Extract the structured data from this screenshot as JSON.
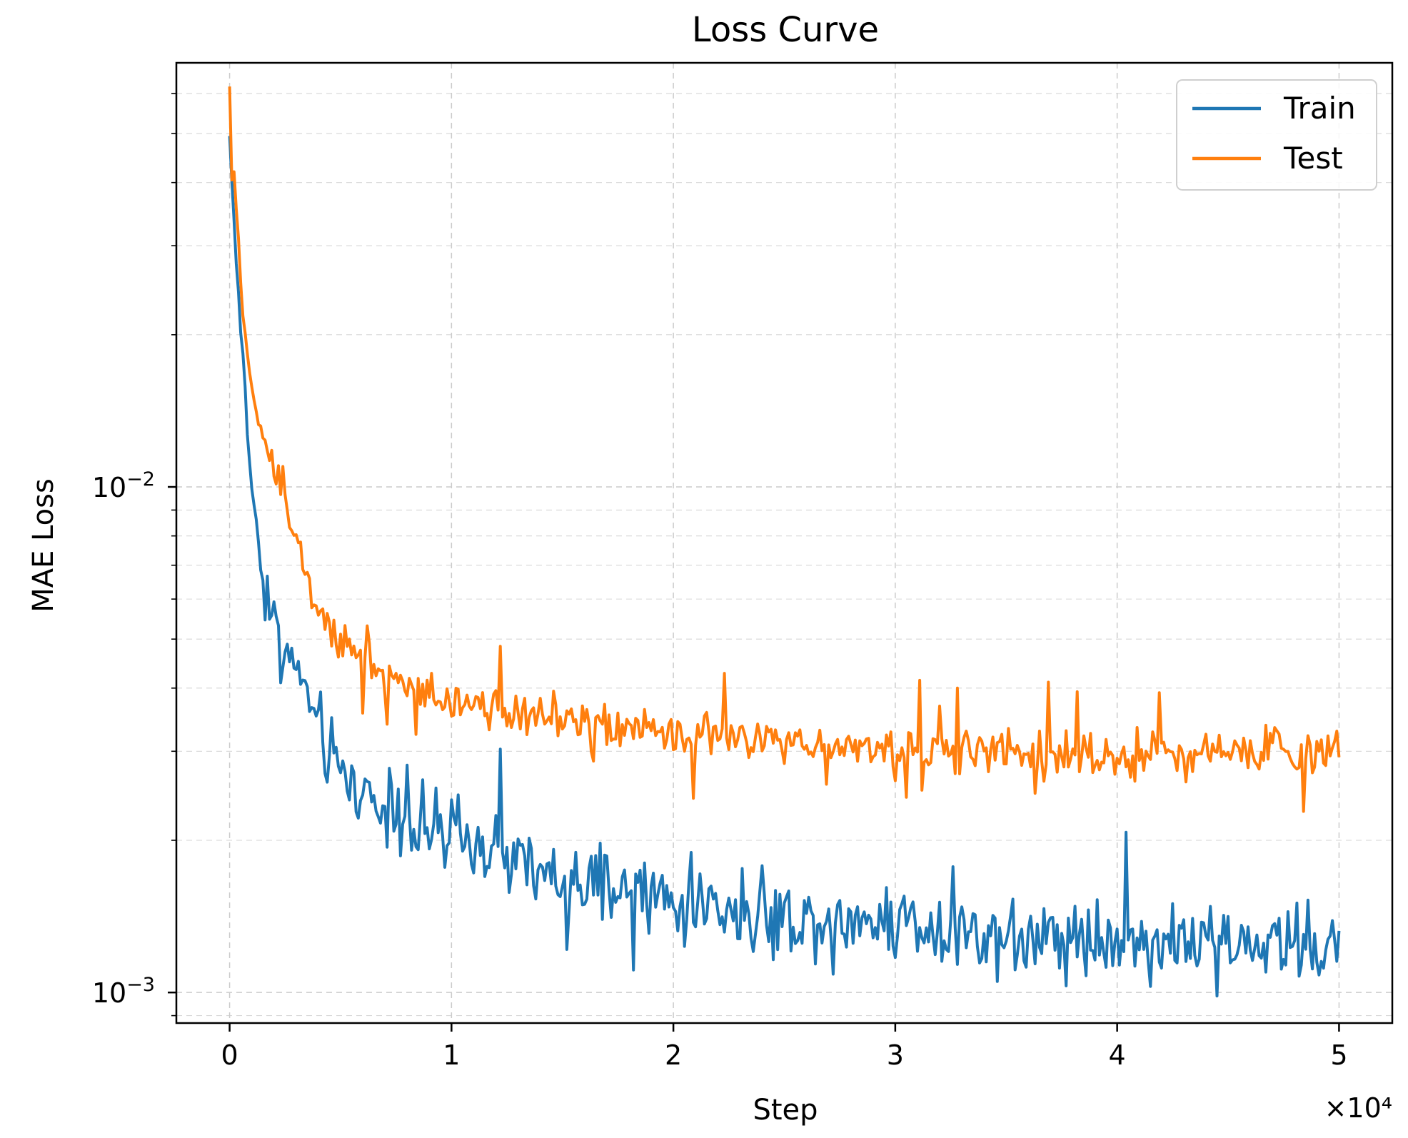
{
  "chart_data": {
    "type": "line",
    "title": "Loss Curve",
    "xlabel": "Step",
    "ylabel": "MAE Loss",
    "x_multiplier_label": "×10⁴",
    "x_scale_factor": 10000,
    "yscale": "log",
    "xlim": [
      -2400,
      52400
    ],
    "ylim": [
      0.00087,
      0.069
    ],
    "x_ticks": [
      {
        "value": 0,
        "label": "0"
      },
      {
        "value": 10000,
        "label": "1"
      },
      {
        "value": 20000,
        "label": "2"
      },
      {
        "value": 30000,
        "label": "3"
      },
      {
        "value": 40000,
        "label": "4"
      },
      {
        "value": 50000,
        "label": "5"
      }
    ],
    "y_major_ticks": [
      {
        "value": 0.001,
        "base": "10",
        "exp": "−3"
      },
      {
        "value": 0.01,
        "base": "10",
        "exp": "−2"
      }
    ],
    "grid": true,
    "legend_position": "upper-right",
    "colors": {
      "Train": "#1f77b4",
      "Test": "#ff7f0e",
      "grid": "#cccccc"
    },
    "series": [
      {
        "name": "Train",
        "color": "#1f77b4",
        "points": [
          [
            0,
            0.049
          ],
          [
            300,
            0.028
          ],
          [
            600,
            0.018
          ],
          [
            900,
            0.011
          ],
          [
            1200,
            0.0085
          ],
          [
            1500,
            0.0066
          ],
          [
            2000,
            0.0055
          ],
          [
            2500,
            0.0048
          ],
          [
            3000,
            0.0043
          ],
          [
            3500,
            0.0039
          ],
          [
            4000,
            0.0033
          ],
          [
            5000,
            0.0027
          ],
          [
            6000,
            0.0025
          ],
          [
            7000,
            0.0023
          ],
          [
            8000,
            0.0022
          ],
          [
            9000,
            0.0021
          ],
          [
            10000,
            0.002
          ],
          [
            12000,
            0.0019
          ],
          [
            14000,
            0.0017
          ],
          [
            16000,
            0.0016
          ],
          [
            18000,
            0.0016
          ],
          [
            20000,
            0.0015
          ],
          [
            22000,
            0.0015
          ],
          [
            24000,
            0.0014
          ],
          [
            26000,
            0.0014
          ],
          [
            28000,
            0.0014
          ],
          [
            30000,
            0.0014
          ],
          [
            32000,
            0.00135
          ],
          [
            34000,
            0.0013
          ],
          [
            36000,
            0.0013
          ],
          [
            38000,
            0.0013
          ],
          [
            40000,
            0.00128
          ],
          [
            42000,
            0.00127
          ],
          [
            44000,
            0.00126
          ],
          [
            46000,
            0.00125
          ],
          [
            48000,
            0.00124
          ],
          [
            50000,
            0.00122
          ]
        ],
        "noise": 0.13
      },
      {
        "name": "Test",
        "color": "#ff7f0e",
        "points": [
          [
            0,
            0.062
          ],
          [
            300,
            0.035
          ],
          [
            600,
            0.022
          ],
          [
            900,
            0.017
          ],
          [
            1200,
            0.014
          ],
          [
            1500,
            0.0125
          ],
          [
            2000,
            0.011
          ],
          [
            2500,
            0.0095
          ],
          [
            3000,
            0.0082
          ],
          [
            3500,
            0.0068
          ],
          [
            4000,
            0.0058
          ],
          [
            5000,
            0.0051
          ],
          [
            6000,
            0.0047
          ],
          [
            7000,
            0.0043
          ],
          [
            8000,
            0.0041
          ],
          [
            9000,
            0.0039
          ],
          [
            10000,
            0.0038
          ],
          [
            12000,
            0.0037
          ],
          [
            14000,
            0.0035
          ],
          [
            16000,
            0.0034
          ],
          [
            18000,
            0.0033
          ],
          [
            20000,
            0.0032
          ],
          [
            22000,
            0.0032
          ],
          [
            24000,
            0.0031
          ],
          [
            26000,
            0.0031
          ],
          [
            28000,
            0.0031
          ],
          [
            30000,
            0.003
          ],
          [
            32000,
            0.003
          ],
          [
            34000,
            0.003
          ],
          [
            36000,
            0.003
          ],
          [
            38000,
            0.003
          ],
          [
            40000,
            0.0029
          ],
          [
            42000,
            0.003
          ],
          [
            44000,
            0.003
          ],
          [
            46000,
            0.003
          ],
          [
            48000,
            0.003
          ],
          [
            50000,
            0.003
          ]
        ],
        "noise": 0.075
      }
    ]
  }
}
